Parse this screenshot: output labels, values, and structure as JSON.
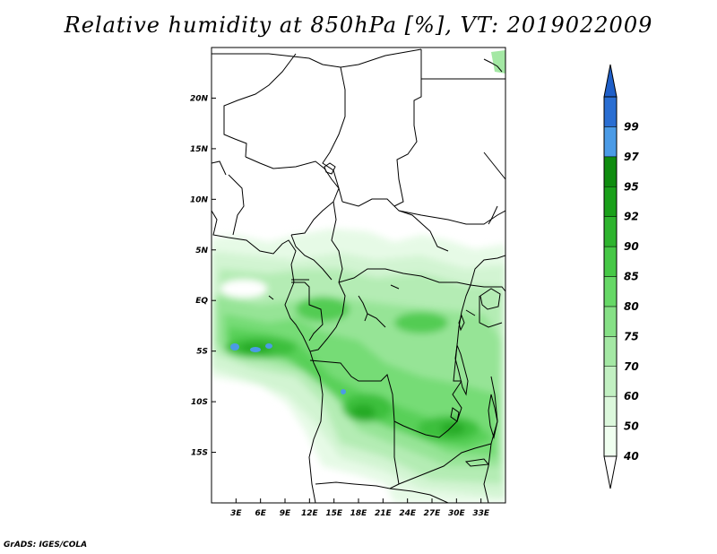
{
  "title": "Relative humidity at 850hPa [%], VT: 2019022009",
  "footer": "GrADS: IGES/COLA",
  "map": {
    "lon_range": [
      0,
      36
    ],
    "lat_range": [
      -20,
      25
    ],
    "lat_ticks": [
      {
        "value": 20,
        "label": "20N"
      },
      {
        "value": 15,
        "label": "15N"
      },
      {
        "value": 10,
        "label": "10N"
      },
      {
        "value": 5,
        "label": "5N"
      },
      {
        "value": 0,
        "label": "EQ"
      },
      {
        "value": -5,
        "label": "5S"
      },
      {
        "value": -10,
        "label": "10S"
      },
      {
        "value": -15,
        "label": "15S"
      }
    ],
    "lon_ticks": [
      {
        "value": 3,
        "label": "3E"
      },
      {
        "value": 6,
        "label": "6E"
      },
      {
        "value": 9,
        "label": "9E"
      },
      {
        "value": 12,
        "label": "12E"
      },
      {
        "value": 15,
        "label": "15E"
      },
      {
        "value": 18,
        "label": "18E"
      },
      {
        "value": 21,
        "label": "21E"
      },
      {
        "value": 24,
        "label": "24E"
      },
      {
        "value": 27,
        "label": "27E"
      },
      {
        "value": 30,
        "label": "30E"
      },
      {
        "value": 33,
        "label": "33E"
      }
    ]
  },
  "colorbar": {
    "levels": [
      {
        "label": "40",
        "color": "#f0fff0"
      },
      {
        "label": "50",
        "color": "#dcf8dc"
      },
      {
        "label": "60",
        "color": "#c2f0c2"
      },
      {
        "label": "70",
        "color": "#a4e8a4"
      },
      {
        "label": "75",
        "color": "#86e086"
      },
      {
        "label": "80",
        "color": "#66d866"
      },
      {
        "label": "85",
        "color": "#46c846"
      },
      {
        "label": "90",
        "color": "#2eb42e"
      },
      {
        "label": "92",
        "color": "#1aa01a"
      },
      {
        "label": "95",
        "color": "#0f8c0f"
      },
      {
        "label": "97",
        "color": "#4b9be6"
      },
      {
        "label": "99",
        "color": "#2a6ed2"
      }
    ],
    "top_color": "#1f5fc8",
    "bottom_color": "#ffffff"
  }
}
